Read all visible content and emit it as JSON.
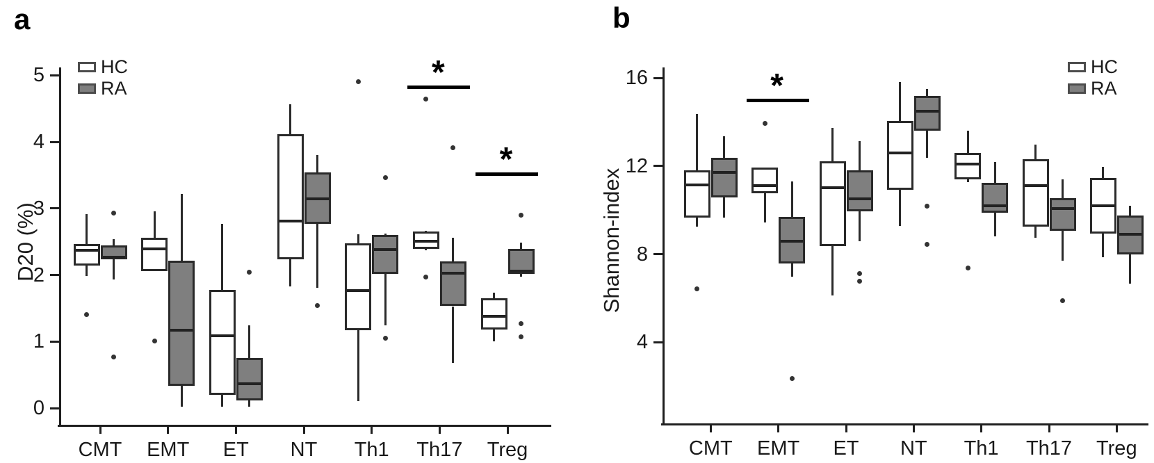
{
  "figure": {
    "background": "#ffffff",
    "panel_a_label": "a",
    "panel_b_label": "b",
    "colors": {
      "hc_fill": "#ffffff",
      "ra_fill": "#7f7f7f",
      "line": "#2a2a2a",
      "sig": "#000000"
    },
    "legend_labels": [
      "HC",
      "RA"
    ]
  },
  "chart_data": [
    {
      "type": "boxplot",
      "panel": "a",
      "panel_label": "a",
      "ylabel": "D20 (%)",
      "ylim": [
        0,
        5.2
      ],
      "yticks": [
        0,
        1,
        2,
        3,
        4,
        5
      ],
      "grid": false,
      "legend_position": "top-left-inside",
      "categories": [
        "CMT",
        "EMT",
        "ET",
        "NT",
        "Th1",
        "Th17",
        "Treg"
      ],
      "series": [
        {
          "name": "HC",
          "fill": "#ffffff",
          "boxes": [
            {
              "whislo": 1.98,
              "q1": 2.14,
              "med": 2.4,
              "q3": 2.46,
              "whishi": 2.91,
              "outliers": [
                1.4
              ]
            },
            {
              "whislo": 2.06,
              "q1": 2.06,
              "med": 2.42,
              "q3": 2.56,
              "whishi": 2.96,
              "outliers": [
                1.01
              ]
            },
            {
              "whislo": 0.02,
              "q1": 0.2,
              "med": 1.12,
              "q3": 1.78,
              "whishi": 2.77,
              "outliers": []
            },
            {
              "whislo": 1.83,
              "q1": 2.23,
              "med": 2.84,
              "q3": 4.11,
              "whishi": 4.56,
              "outliers": []
            },
            {
              "whislo": 0.1,
              "q1": 1.17,
              "med": 1.8,
              "q3": 2.47,
              "whishi": 2.61,
              "outliers": [
                4.9
              ]
            },
            {
              "whislo": 2.37,
              "q1": 2.39,
              "med": 2.54,
              "q3": 2.65,
              "whishi": 2.66,
              "outliers": [
                4.64,
                1.97
              ]
            },
            {
              "whislo": 1.0,
              "q1": 1.18,
              "med": 1.41,
              "q3": 1.65,
              "whishi": 1.73,
              "outliers": []
            }
          ]
        },
        {
          "name": "RA",
          "fill": "#7f7f7f",
          "boxes": [
            {
              "whislo": 1.93,
              "q1": 2.23,
              "med": 2.3,
              "q3": 2.44,
              "whishi": 2.54,
              "outliers": [
                2.93,
                0.77
              ]
            },
            {
              "whislo": 0.02,
              "q1": 0.33,
              "med": 1.2,
              "q3": 2.21,
              "whishi": 3.22,
              "outliers": []
            },
            {
              "whislo": 0.02,
              "q1": 0.12,
              "med": 0.4,
              "q3": 0.75,
              "whishi": 1.24,
              "outliers": [
                2.04
              ]
            },
            {
              "whislo": 1.81,
              "q1": 2.77,
              "med": 3.17,
              "q3": 3.54,
              "whishi": 3.8,
              "outliers": [
                1.54
              ]
            },
            {
              "whislo": 1.24,
              "q1": 2.02,
              "med": 2.41,
              "q3": 2.6,
              "whishi": 2.62,
              "outliers": [
                3.46,
                1.05
              ]
            },
            {
              "whislo": 0.68,
              "q1": 1.53,
              "med": 2.06,
              "q3": 2.2,
              "whishi": 2.56,
              "outliers": [
                3.91
              ]
            },
            {
              "whislo": 1.97,
              "q1": 2.02,
              "med": 2.09,
              "q3": 2.39,
              "whishi": 2.49,
              "outliers": [
                2.9,
                1.27,
                1.07
              ]
            }
          ]
        }
      ],
      "significance": [
        {
          "category": "Th17",
          "label": "*",
          "bar_value": 4.85
        },
        {
          "category": "Treg",
          "label": "*",
          "bar_value": 3.54
        }
      ]
    },
    {
      "type": "boxplot",
      "panel": "b",
      "panel_label": "b",
      "ylabel": "Shannon-index",
      "ylim": [
        1.5,
        16.5
      ],
      "yticks": [
        4,
        8,
        12,
        16
      ],
      "grid": false,
      "legend_position": "top-right-inside",
      "categories": [
        "CMT",
        "EMT",
        "ET",
        "NT",
        "Th1",
        "Th17",
        "Treg"
      ],
      "series": [
        {
          "name": "HC",
          "fill": "#ffffff",
          "boxes": [
            {
              "whislo": 9.25,
              "q1": 9.67,
              "med": 11.23,
              "q3": 11.81,
              "whishi": 14.36,
              "outliers": [
                6.44
              ]
            },
            {
              "whislo": 9.44,
              "q1": 10.76,
              "med": 11.2,
              "q3": 11.94,
              "whishi": 11.94,
              "outliers": [
                13.94
              ]
            },
            {
              "whislo": 6.13,
              "q1": 8.38,
              "med": 11.12,
              "q3": 12.23,
              "whishi": 13.73,
              "outliers": []
            },
            {
              "whislo": 9.29,
              "q1": 10.93,
              "med": 12.7,
              "q3": 14.05,
              "whishi": 15.81,
              "outliers": []
            },
            {
              "whislo": 11.28,
              "q1": 11.41,
              "med": 12.2,
              "q3": 12.6,
              "whishi": 13.62,
              "outliers": [
                7.36
              ]
            },
            {
              "whislo": 8.76,
              "q1": 9.25,
              "med": 11.21,
              "q3": 12.31,
              "whishi": 12.97,
              "outliers": []
            },
            {
              "whislo": 7.86,
              "q1": 8.94,
              "med": 10.31,
              "q3": 11.46,
              "whishi": 11.97,
              "outliers": []
            }
          ]
        },
        {
          "name": "RA",
          "fill": "#7f7f7f",
          "boxes": [
            {
              "whislo": 9.65,
              "q1": 10.57,
              "med": 11.81,
              "q3": 12.39,
              "whishi": 13.36,
              "outliers": []
            },
            {
              "whislo": 6.97,
              "q1": 7.57,
              "med": 8.67,
              "q3": 9.68,
              "whishi": 11.3,
              "outliers": [
                2.34
              ]
            },
            {
              "whislo": 8.6,
              "q1": 9.96,
              "med": 10.61,
              "q3": 11.82,
              "whishi": 13.15,
              "outliers": [
                7.13,
                6.76
              ]
            },
            {
              "whislo": 12.39,
              "q1": 13.6,
              "med": 14.59,
              "q3": 15.2,
              "whishi": 15.51,
              "outliers": [
                10.18,
                8.44
              ]
            },
            {
              "whislo": 8.81,
              "q1": 9.88,
              "med": 10.28,
              "q3": 11.23,
              "whishi": 12.2,
              "outliers": []
            },
            {
              "whislo": 7.7,
              "q1": 9.05,
              "med": 10.18,
              "q3": 10.55,
              "whishi": 11.39,
              "outliers": [
                5.88
              ]
            },
            {
              "whislo": 6.65,
              "q1": 7.99,
              "med": 8.99,
              "q3": 9.76,
              "whishi": 10.21,
              "outliers": []
            }
          ]
        }
      ],
      "significance": [
        {
          "category": "EMT",
          "label": "*",
          "bar_value": 15.07
        }
      ]
    }
  ]
}
